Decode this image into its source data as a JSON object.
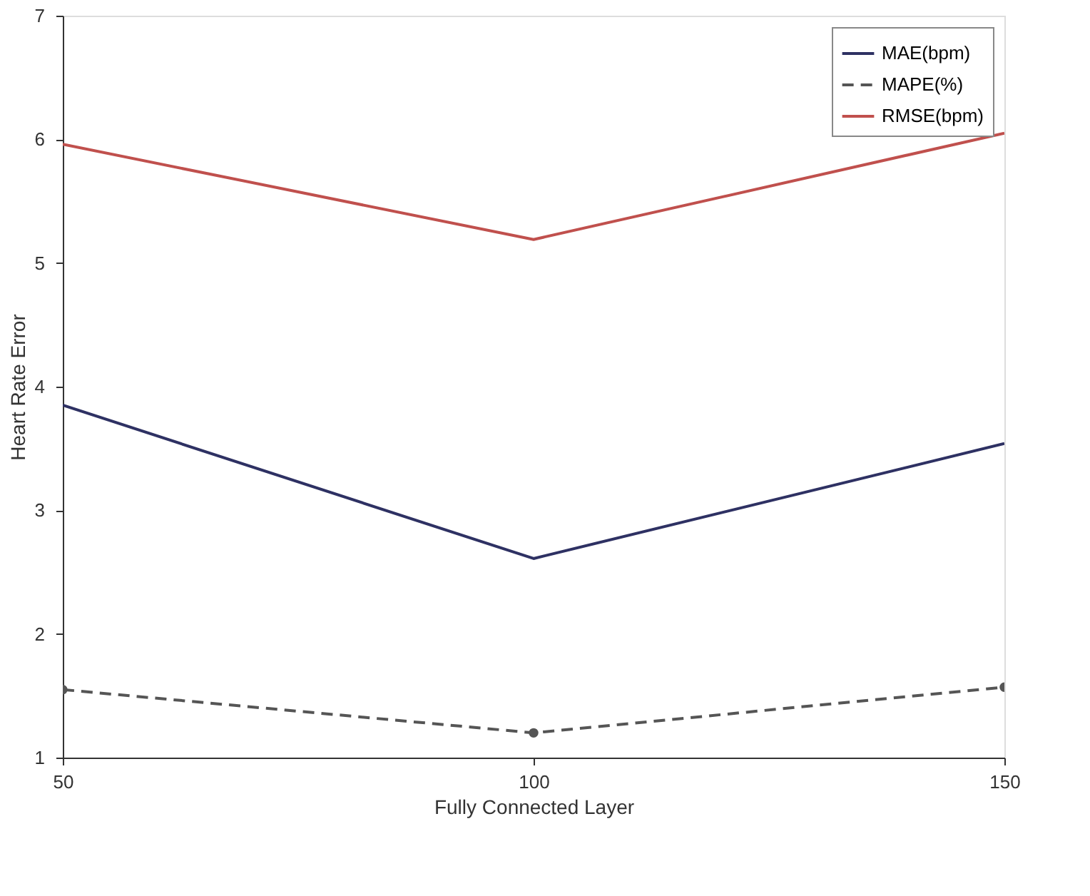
{
  "chart_data": {
    "type": "line",
    "xlabel": "Fully Connected Layer",
    "ylabel": "Heart Rate Error",
    "x": [
      50,
      100,
      150
    ],
    "xlim": [
      50,
      150
    ],
    "xticks": [
      50,
      100,
      150
    ],
    "ylim": [
      1,
      7
    ],
    "yticks": [
      1,
      2,
      3,
      4,
      5,
      6,
      7
    ],
    "grid": false,
    "legend": "top right",
    "series": [
      {
        "name": "MAE(bpm)",
        "color": "#2e3163",
        "values": [
          3.85,
          2.61,
          3.54
        ],
        "line_style": "solid",
        "marker": "none"
      },
      {
        "name": "MAPE(%)",
        "color": "#555555",
        "values": [
          1.55,
          1.2,
          1.57
        ],
        "line_style": "dashed",
        "marker": "circle"
      },
      {
        "name": "RMSE(bpm)",
        "color": "#c0504d",
        "values": [
          5.96,
          5.19,
          6.05
        ],
        "line_style": "solid",
        "marker": "none"
      }
    ]
  }
}
